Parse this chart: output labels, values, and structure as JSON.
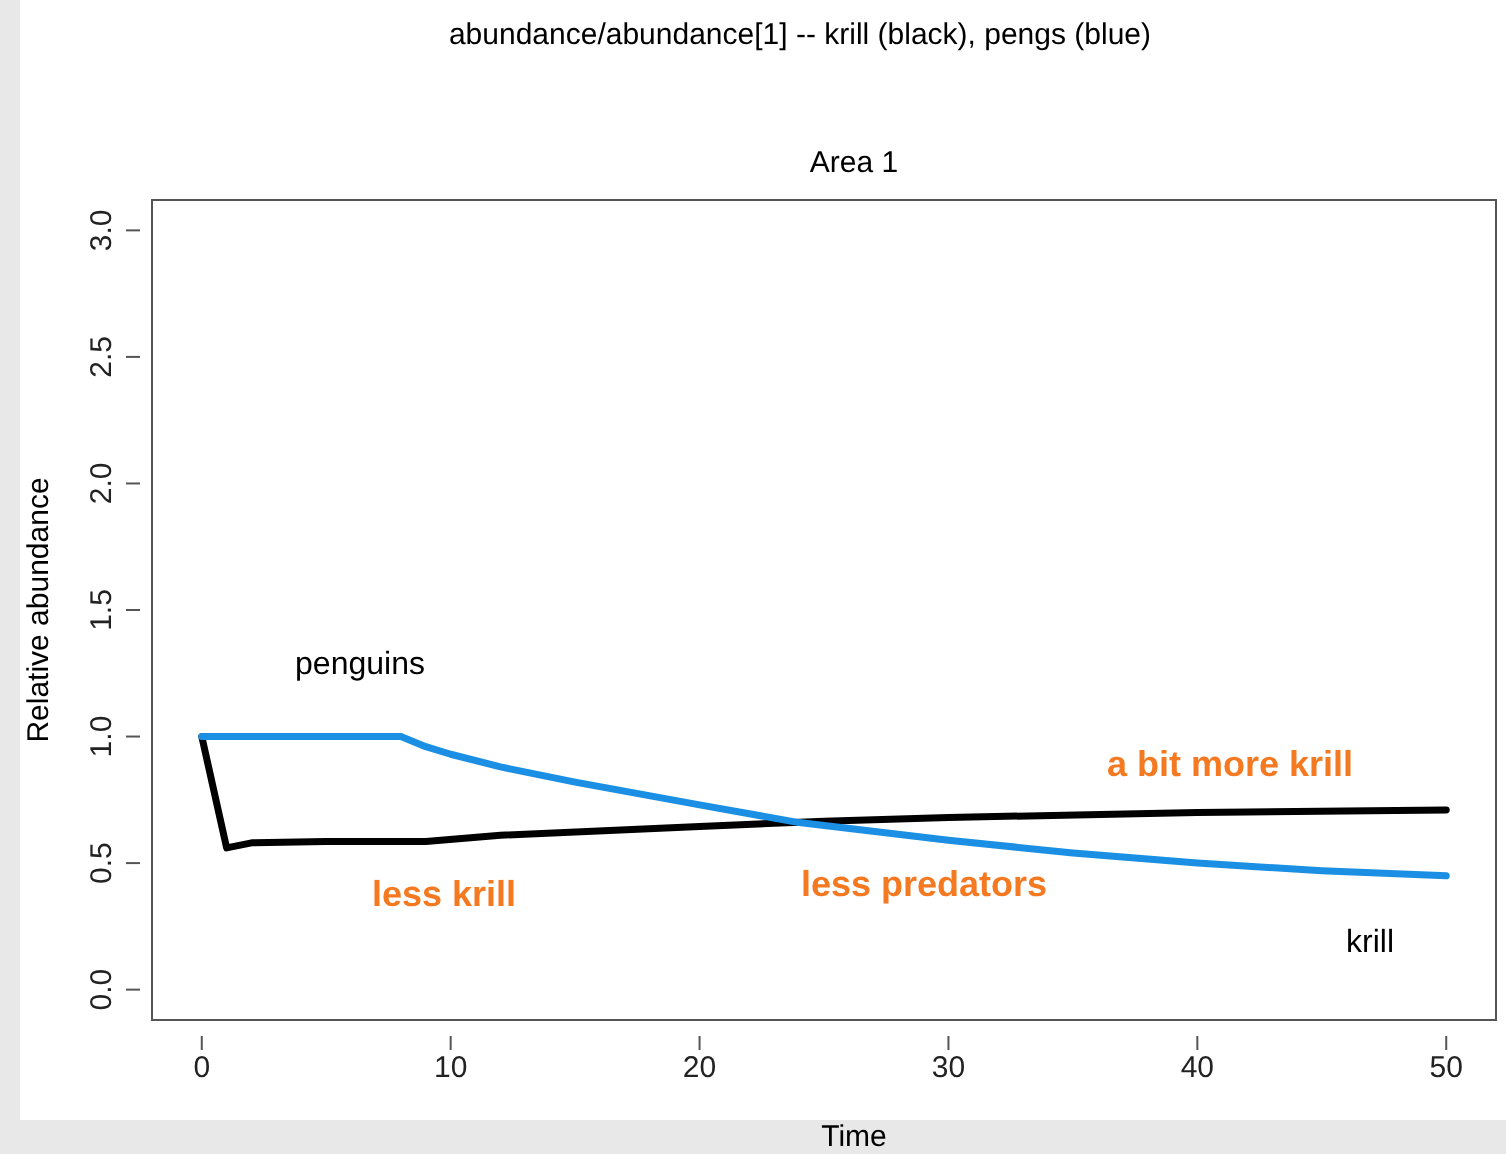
{
  "chart_data": {
    "type": "line",
    "title": "abundance/abundance[1] -- krill (black), pengs (blue)",
    "subtitle": "Area 1",
    "xlabel": "Time",
    "ylabel": "Relative abundance",
    "xlim": [
      -2,
      52
    ],
    "ylim": [
      -0.12,
      3.12
    ],
    "xticks": [
      0,
      10,
      20,
      30,
      40,
      50
    ],
    "yticks": [
      {
        "value": 0,
        "label": "0.0"
      },
      {
        "value": 0.5,
        "label": "0.5"
      },
      {
        "value": 1,
        "label": "1.0"
      },
      {
        "value": 1.5,
        "label": "1.5"
      },
      {
        "value": 2,
        "label": "2.0"
      },
      {
        "value": 2.5,
        "label": "2.5"
      },
      {
        "value": 3,
        "label": "3.0"
      }
    ],
    "grid": false,
    "series": [
      {
        "color": "#000000",
        "x": [
          0,
          1,
          2,
          5,
          9,
          12,
          20,
          25,
          30,
          40,
          50
        ],
        "values": [
          1.0,
          0.56,
          0.58,
          0.585,
          0.585,
          0.61,
          0.645,
          0.665,
          0.68,
          0.7,
          0.71
        ]
      },
      {
        "color": "#1a8fe3",
        "x": [
          0,
          8,
          9,
          10,
          12,
          15,
          20,
          24,
          30,
          35,
          40,
          45,
          50
        ],
        "values": [
          1.0,
          1.0,
          0.96,
          0.93,
          0.88,
          0.82,
          0.73,
          0.66,
          0.59,
          0.54,
          0.5,
          0.47,
          0.45
        ]
      }
    ],
    "annotations": [
      "penguins",
      "krill",
      "less krill",
      "less predators",
      "a bit more krill"
    ]
  }
}
